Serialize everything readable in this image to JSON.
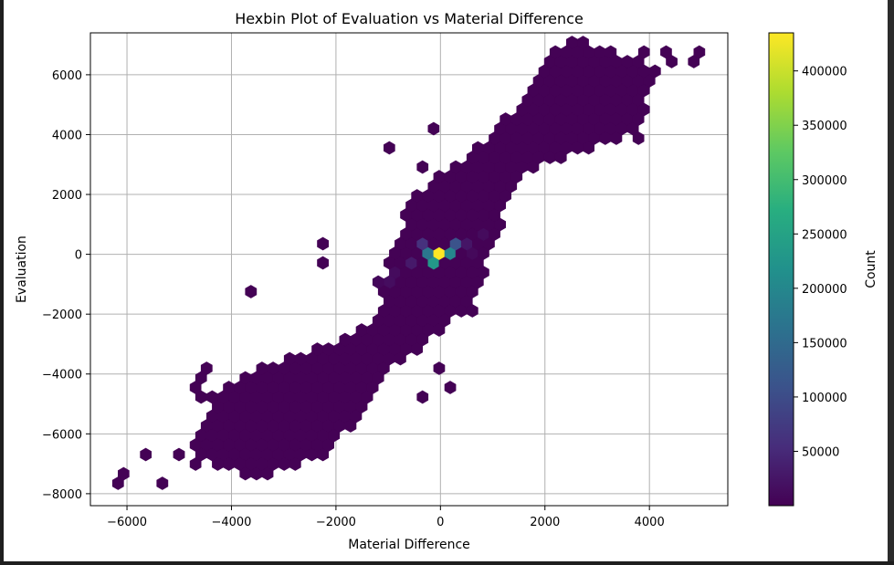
{
  "chart_data": {
    "type": "hexbin",
    "title": "Hexbin Plot of Evaluation vs Material Difference",
    "xlabel": "Material Difference",
    "ylabel": "Evaluation",
    "xlim": [
      -6700,
      5500
    ],
    "ylim": [
      -8400,
      7400
    ],
    "xticks": [
      -6000,
      -4000,
      -2000,
      0,
      2000,
      4000
    ],
    "yticks": [
      -8000,
      -6000,
      -4000,
      -2000,
      0,
      2000,
      4000,
      6000
    ],
    "grid": true,
    "colormap": "viridis",
    "colorbar": {
      "label": "Count",
      "range": [
        0,
        435000
      ],
      "ticks": [
        50000,
        100000,
        150000,
        200000,
        250000,
        300000,
        350000,
        400000
      ]
    },
    "main_band": [
      [
        -4000,
        -6400,
        2
      ],
      [
        -3200,
        -5600,
        2
      ],
      [
        -2400,
        -4800,
        2
      ],
      [
        -1600,
        -3800,
        2
      ],
      [
        -800,
        -2600,
        2
      ],
      [
        -300,
        -1200,
        2
      ],
      [
        0,
        0,
        2
      ],
      [
        400,
        1300,
        2
      ],
      [
        1000,
        2700,
        2
      ],
      [
        1600,
        3700,
        2
      ],
      [
        2400,
        4800,
        2
      ],
      [
        3200,
        5700,
        2
      ]
    ],
    "outlier_bins": [
      [
        -6100,
        -7550,
        2
      ],
      [
        -6000,
        -7350,
        2
      ],
      [
        -5600,
        -6800,
        2
      ],
      [
        -5300,
        -7550,
        2
      ],
      [
        -5000,
        -6600,
        2
      ],
      [
        -4600,
        -7000,
        2
      ],
      [
        -4400,
        -6600,
        2
      ],
      [
        -4400,
        -3850,
        2
      ],
      [
        -4550,
        -4100,
        2
      ],
      [
        -4600,
        -4450,
        2
      ],
      [
        -4600,
        -4850,
        2
      ],
      [
        -4300,
        -4700,
        2
      ],
      [
        -3700,
        -1400,
        2
      ],
      [
        -2300,
        200,
        2
      ],
      [
        -2200,
        -300,
        2
      ],
      [
        -1000,
        3700,
        2
      ],
      [
        -200,
        4300,
        2
      ],
      [
        -300,
        3000,
        2
      ],
      [
        200,
        2800,
        2
      ],
      [
        2100,
        5650,
        2
      ],
      [
        2500,
        5950,
        2
      ],
      [
        3600,
        4700,
        2
      ],
      [
        3900,
        5900,
        2
      ],
      [
        3800,
        6350,
        2
      ],
      [
        4000,
        6800,
        2
      ],
      [
        4250,
        6700,
        2
      ],
      [
        4450,
        6500,
        2
      ],
      [
        4850,
        6500,
        2
      ],
      [
        5000,
        6750,
        2
      ],
      [
        3200,
        4850,
        2
      ],
      [
        3700,
        4000,
        2
      ],
      [
        0,
        -3700,
        2
      ],
      [
        100,
        -4300,
        2
      ],
      [
        -400,
        -4800,
        2
      ],
      [
        700,
        -2000,
        2
      ]
    ],
    "hot_bins": [
      [
        -800,
        -600,
        12000
      ],
      [
        -500,
        -200,
        30000
      ],
      [
        -300,
        200,
        60000
      ],
      [
        -200,
        -300,
        90000
      ],
      [
        -100,
        -100,
        260000
      ],
      [
        -50,
        -250,
        230000
      ],
      [
        -150,
        0,
        170000
      ],
      [
        100,
        150,
        200000
      ],
      [
        200,
        400,
        110000
      ],
      [
        50,
        50,
        435000
      ],
      [
        350,
        250,
        45000
      ],
      [
        600,
        400,
        25000
      ],
      [
        900,
        700,
        12000
      ],
      [
        -900,
        -900,
        15000
      ],
      [
        -1200,
        -800,
        8000
      ],
      [
        600,
        100,
        10000
      ]
    ]
  }
}
